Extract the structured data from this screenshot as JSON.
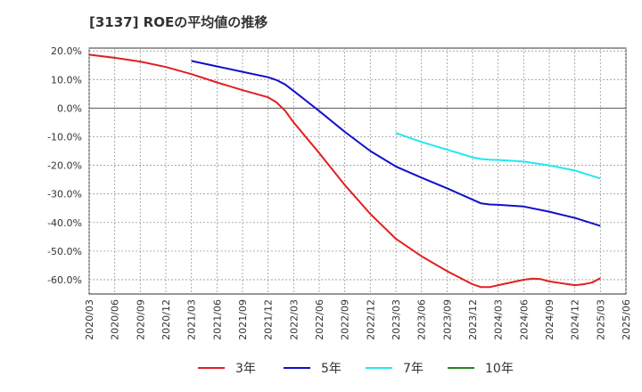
{
  "chart_data": {
    "type": "line",
    "title": "[3137]  ROEの平均値の推移",
    "xlabel": "",
    "ylabel": "",
    "ylim": [
      -65,
      21
    ],
    "y_ticks": [
      "20.0%",
      "10.0%",
      "0.0%",
      "-10.0%",
      "-20.0%",
      "-30.0%",
      "-40.0%",
      "-50.0%",
      "-60.0%"
    ],
    "y_tick_values": [
      20,
      10,
      0,
      -10,
      -20,
      -30,
      -40,
      -50,
      -60
    ],
    "x_ticks": [
      "2020/03",
      "2020/06",
      "2020/09",
      "2020/12",
      "2021/03",
      "2021/06",
      "2021/09",
      "2021/12",
      "2022/03",
      "2022/06",
      "2022/09",
      "2022/12",
      "2023/03",
      "2023/06",
      "2023/09",
      "2023/12",
      "2024/03",
      "2024/06",
      "2024/09",
      "2024/12",
      "2025/03",
      "2025/06"
    ],
    "grid": true,
    "legend_position": "bottom",
    "series": [
      {
        "name": "3年",
        "color": "#e02020",
        "points": [
          [
            "2020/03",
            18.7
          ],
          [
            "2020/06",
            17.6
          ],
          [
            "2020/09",
            16.3
          ],
          [
            "2020/12",
            14.4
          ],
          [
            "2021/03",
            11.9
          ],
          [
            "2021/06",
            9.0
          ],
          [
            "2021/09",
            6.3
          ],
          [
            "2021/12",
            3.8
          ],
          [
            "2022/01",
            2.0
          ],
          [
            "2022/02",
            -0.9
          ],
          [
            "2022/03",
            -5.0
          ],
          [
            "2022/06",
            -15.7
          ],
          [
            "2022/09",
            -26.9
          ],
          [
            "2022/12",
            -37.0
          ],
          [
            "2023/03",
            -45.7
          ],
          [
            "2023/06",
            -51.8
          ],
          [
            "2023/09",
            -57.0
          ],
          [
            "2023/12",
            -61.6
          ],
          [
            "2024/01",
            -62.6
          ],
          [
            "2024/02",
            -62.6
          ],
          [
            "2024/03",
            -61.9
          ],
          [
            "2024/06",
            -60.0
          ],
          [
            "2024/07",
            -59.6
          ],
          [
            "2024/08",
            -59.8
          ],
          [
            "2024/09",
            -60.6
          ],
          [
            "2024/12",
            -61.9
          ],
          [
            "2025/01",
            -61.6
          ],
          [
            "2025/02",
            -61.0
          ],
          [
            "2025/03",
            -59.5
          ]
        ]
      },
      {
        "name": "5年",
        "color": "#1010c8",
        "points": [
          [
            "2021/03",
            16.5
          ],
          [
            "2021/06",
            14.6
          ],
          [
            "2021/09",
            12.7
          ],
          [
            "2021/12",
            10.8
          ],
          [
            "2022/01",
            9.8
          ],
          [
            "2022/02",
            8.3
          ],
          [
            "2022/03",
            6.0
          ],
          [
            "2022/06",
            -1.0
          ],
          [
            "2022/09",
            -8.3
          ],
          [
            "2022/12",
            -15.0
          ],
          [
            "2023/03",
            -20.4
          ],
          [
            "2023/06",
            -24.3
          ],
          [
            "2023/09",
            -28.0
          ],
          [
            "2023/12",
            -32.0
          ],
          [
            "2024/01",
            -33.3
          ],
          [
            "2024/02",
            -33.7
          ],
          [
            "2024/03",
            -33.8
          ],
          [
            "2024/06",
            -34.4
          ],
          [
            "2024/09",
            -36.2
          ],
          [
            "2024/12",
            -38.4
          ],
          [
            "2025/03",
            -41.2
          ]
        ]
      },
      {
        "name": "7年",
        "color": "#22e8f0",
        "points": [
          [
            "2023/03",
            -8.7
          ],
          [
            "2023/06",
            -11.8
          ],
          [
            "2023/09",
            -14.5
          ],
          [
            "2023/12",
            -17.2
          ],
          [
            "2024/01",
            -17.8
          ],
          [
            "2024/02",
            -18.0
          ],
          [
            "2024/03",
            -18.1
          ],
          [
            "2024/06",
            -18.7
          ],
          [
            "2024/09",
            -20.0
          ],
          [
            "2024/12",
            -21.8
          ],
          [
            "2025/03",
            -24.6
          ]
        ]
      },
      {
        "name": "10年",
        "color": "#208820",
        "points": []
      }
    ]
  }
}
